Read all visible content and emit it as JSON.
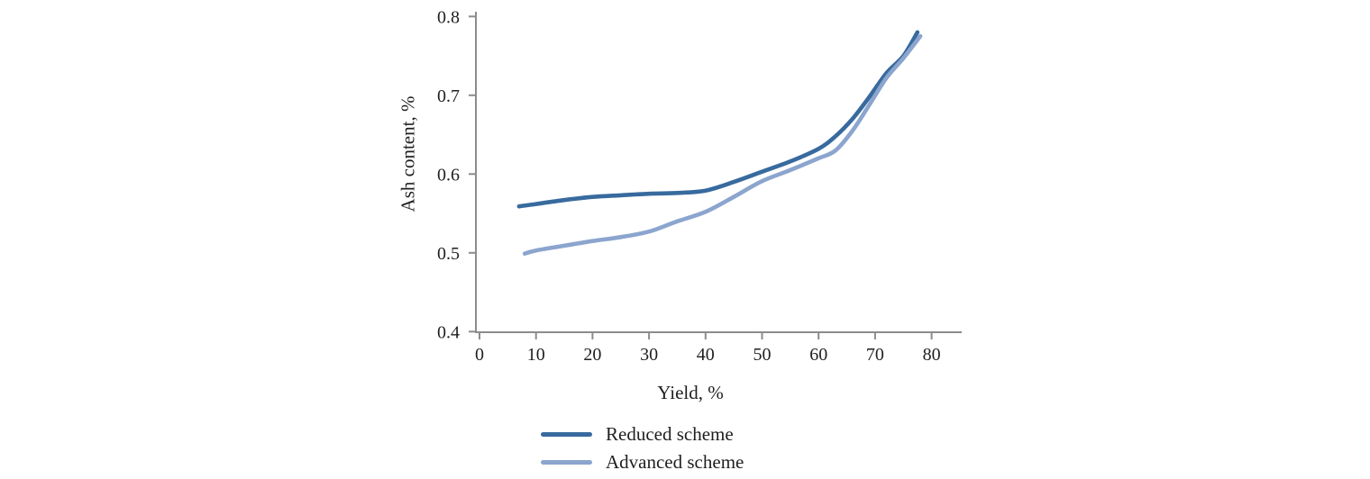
{
  "colors": {
    "axis": "#8c8c8c",
    "text": "#1f1f1f",
    "background": "#ffffff",
    "series_reduced": "#386a9e",
    "series_advanced": "#8ba5ce"
  },
  "chart_data": {
    "type": "line",
    "title": "",
    "xlabel": "Yield, %",
    "ylabel": "Ash content, %",
    "xlim": [
      0,
      85
    ],
    "ylim": [
      0.4,
      0.8
    ],
    "grid": false,
    "legend_position": "bottom-left",
    "x_ticks": [
      0,
      10,
      20,
      30,
      40,
      50,
      60,
      70,
      80
    ],
    "x_tick_labels": [
      "0",
      "10",
      "20",
      "30",
      "40",
      "50",
      "60",
      "70",
      "80"
    ],
    "y_ticks": [
      0.8,
      0.7,
      0.6,
      0.5,
      0.4
    ],
    "y_tick_labels": [
      "0.8",
      "0.7",
      "0.6",
      "0.5",
      "0.4"
    ],
    "series": [
      {
        "name": "Reduced scheme",
        "color": "#386a9e",
        "points": [
          [
            7,
            0.559
          ],
          [
            10,
            0.562
          ],
          [
            15,
            0.567
          ],
          [
            20,
            0.571
          ],
          [
            25,
            0.573
          ],
          [
            30,
            0.575
          ],
          [
            35,
            0.576
          ],
          [
            40,
            0.579
          ],
          [
            45,
            0.59
          ],
          [
            50,
            0.603
          ],
          [
            55,
            0.616
          ],
          [
            60,
            0.632
          ],
          [
            63,
            0.648
          ],
          [
            66,
            0.67
          ],
          [
            69,
            0.698
          ],
          [
            72,
            0.728
          ],
          [
            75,
            0.75
          ],
          [
            77.5,
            0.78
          ]
        ]
      },
      {
        "name": "Advanced scheme",
        "color": "#8ba5ce",
        "points": [
          [
            8,
            0.499
          ],
          [
            10,
            0.503
          ],
          [
            15,
            0.509
          ],
          [
            20,
            0.515
          ],
          [
            25,
            0.52
          ],
          [
            30,
            0.527
          ],
          [
            35,
            0.54
          ],
          [
            40,
            0.552
          ],
          [
            45,
            0.571
          ],
          [
            50,
            0.591
          ],
          [
            55,
            0.605
          ],
          [
            60,
            0.62
          ],
          [
            63,
            0.63
          ],
          [
            66,
            0.655
          ],
          [
            69,
            0.688
          ],
          [
            72,
            0.722
          ],
          [
            75,
            0.747
          ],
          [
            78,
            0.775
          ]
        ]
      }
    ]
  }
}
